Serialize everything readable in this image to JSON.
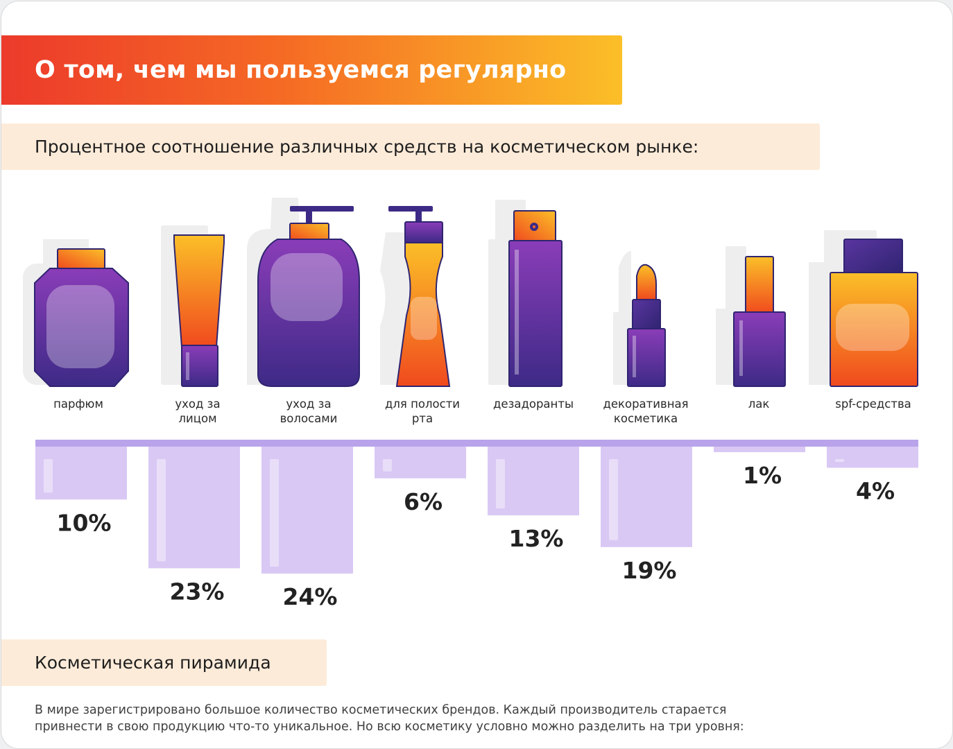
{
  "header": {
    "title": "О том, чем мы пользуемся регулярно",
    "subtitle": "Процентное соотношение различных средств на косметическом рынке:"
  },
  "section2": {
    "title": "Косметическая пирамида",
    "body_lines": [
      "В мире зарегистрировано большое количество косметических брендов. Каждый производитель старается",
      "привнести в свою продукцию что-то уникальное. Но всю косметику условно можно разделить на три уровня:"
    ]
  },
  "colors": {
    "banner_start": "#ec3a2b",
    "banner_end": "#fbbf28",
    "purple_light": "#8a3db8",
    "purple_dark": "#3d2a86",
    "orange_light": "#fbbf28",
    "orange_dark": "#f04a1e",
    "bar_fill": "#d9c8f4",
    "baseline": "#b9a3ea",
    "label_box": "#fdebd9"
  },
  "chart_data": {
    "type": "bar",
    "orientation": "downward",
    "value_suffix": "%",
    "categories": [
      {
        "label": [
          "парфюм"
        ],
        "icon": "perfume-bottle-icon"
      },
      {
        "label": [
          "уход за",
          "лицом"
        ],
        "icon": "face-cream-tube-icon"
      },
      {
        "label": [
          "уход за",
          "волосами"
        ],
        "icon": "shampoo-bottle-icon"
      },
      {
        "label": [
          "для полости",
          "рта"
        ],
        "icon": "mouthwash-bottle-icon"
      },
      {
        "label": [
          "дезадоранты"
        ],
        "icon": "deodorant-spray-icon"
      },
      {
        "label": [
          "декоративная",
          "косметика"
        ],
        "icon": "lipstick-icon"
      },
      {
        "label": [
          "лак"
        ],
        "icon": "nail-polish-icon"
      },
      {
        "label": [
          "spf-средства"
        ],
        "icon": "sunscreen-bottle-icon"
      }
    ],
    "values": [
      10,
      23,
      24,
      6,
      13,
      19,
      1,
      4
    ],
    "ylim": [
      0,
      24
    ]
  }
}
